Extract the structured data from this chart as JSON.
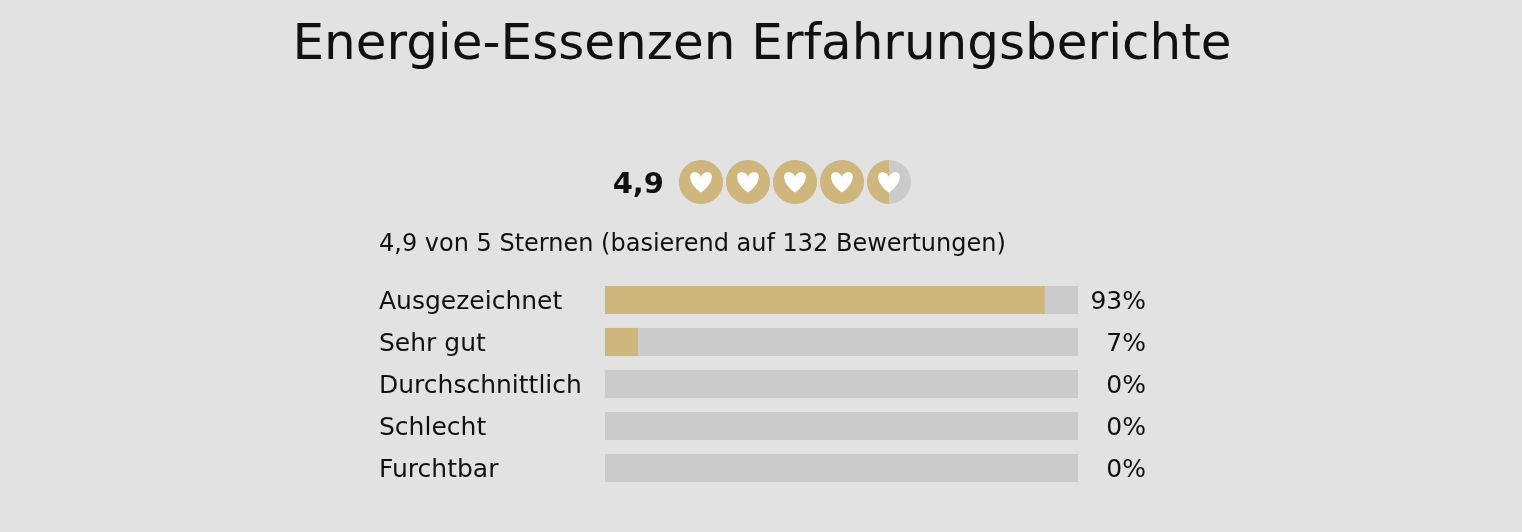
{
  "chart_data": {
    "type": "bar",
    "orientation": "horizontal",
    "stacked": true,
    "title": "Energie-Essenzen Erfahrungsberichte",
    "subtitle": "4,9 von 5 Sternen (basierend auf 132 Bewertungen)",
    "annotations": [
      "4,9"
    ],
    "categories": [
      "Ausgezeichnet",
      "Sehr gut",
      "Durchschnittlich",
      "Schlecht",
      "Furchtbar"
    ],
    "series": [
      {
        "color": "#cfb67c",
        "values": [
          93,
          7,
          0,
          0,
          0
        ],
        "value_labels": [
          "93%",
          "7%",
          "0%",
          "0%",
          "0%"
        ]
      },
      {
        "color": "#cbcbcb",
        "values": [
          7,
          93,
          100,
          100,
          100
        ]
      }
    ],
    "xlim": [
      0,
      100
    ],
    "tick_labels": "y"
  }
}
